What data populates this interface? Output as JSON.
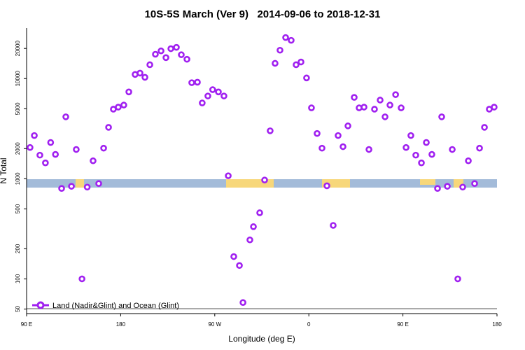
{
  "chart_data": {
    "type": "scatter",
    "title": "10S-5S March (Ver 9)   2014-09-06 to 2018-12-31",
    "x_label": "Longitude (deg E)",
    "y_label": "N Total",
    "log_y": true,
    "xlim": [
      90,
      540
    ],
    "ylim": [
      45,
      32000
    ],
    "xticks": [
      {
        "value": 90,
        "label": "90 E"
      },
      {
        "value": 180,
        "label": "180"
      },
      {
        "value": 270,
        "label": "90 W"
      },
      {
        "value": 360,
        "label": "0"
      },
      {
        "value": 450,
        "label": "90 E"
      },
      {
        "value": 540,
        "label": "180"
      }
    ],
    "yticks": [
      50,
      100,
      200,
      500,
      1000,
      2000,
      5000,
      10000,
      20000
    ],
    "legend": "bottom left",
    "series": [
      {
        "name": "Land (Nadir&Glint) and Ocean (Glint)",
        "color": "#a020f0",
        "x": [
          93.3,
          97.4,
          102.7,
          108,
          113,
          117.6,
          123.5,
          127.5,
          132.9,
          137.5,
          143,
          148,
          153.6,
          159,
          163.7,
          168.4,
          173,
          177.7,
          183,
          187.8,
          193.8,
          198.5,
          203.2,
          207.9,
          213.2,
          218.6,
          223.3,
          228,
          233.3,
          238,
          243.4,
          248,
          253.4,
          258,
          263.4,
          268,
          273.5,
          278.8,
          282.9,
          288.2,
          293.6,
          297,
          303.6,
          307,
          313,
          317.7,
          323,
          327.7,
          332.4,
          337.8,
          343.1,
          347.8,
          352.5,
          357.8,
          362.5,
          367.9,
          372.6,
          377.3,
          383.3,
          388,
          392.7,
          397.4,
          403.4,
          408.1,
          412.8,
          417.5,
          422.8,
          428.2,
          432.9,
          437.6,
          443,
          448.3,
          453,
          457.6,
          462.3,
          467.7,
          472.4,
          477.7,
          483.1,
          487.1,
          492.5,
          497.2,
          502.5,
          507.2,
          512.6,
          518.6,
          523.3,
          528,
          532.6,
          537.3
        ],
        "values": [
          2050,
          2700,
          1720,
          1440,
          2300,
          1750,
          800,
          4150,
          840,
          1960,
          100,
          825,
          1510,
          895,
          2020,
          3260,
          4950,
          5190,
          5440,
          7360,
          11000,
          11350,
          10300,
          13750,
          17500,
          18900,
          16200,
          19900,
          20500,
          17300,
          15600,
          9100,
          9200,
          5710,
          6700,
          7750,
          7360,
          6700,
          1070,
          167,
          136,
          58,
          245,
          332,
          457,
          970,
          3010,
          14200,
          19200,
          25700,
          24100,
          13750,
          14650,
          10150,
          5100,
          2830,
          2020,
          850,
          342,
          2700,
          2090,
          3370,
          6490,
          5100,
          5190,
          1960,
          4950,
          6100,
          4150,
          5440,
          6920,
          5100,
          2050,
          2700,
          1720,
          1440,
          2300,
          1750,
          800,
          4150,
          840,
          1960,
          100,
          825,
          1510,
          895,
          2020,
          3260,
          4950,
          5190
        ]
      }
    ]
  }
}
